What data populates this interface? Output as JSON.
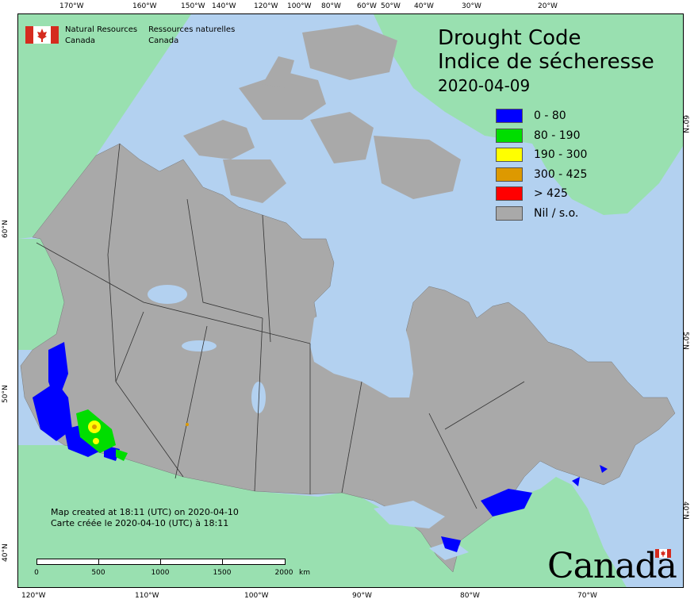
{
  "map": {
    "title_en": "Drought Code",
    "title_fr": "Indice de sécheresse",
    "date": "2020-04-09"
  },
  "legend": [
    {
      "label": "0 - 80",
      "color": "#0000ff"
    },
    {
      "label": "80 - 190",
      "color": "#00dd00"
    },
    {
      "label": "190 - 300",
      "color": "#ffff00"
    },
    {
      "label": "300 - 425",
      "color": "#dd9900"
    },
    {
      "label": "> 425",
      "color": "#ff0000"
    },
    {
      "label": "Nil / s.o.",
      "color": "#a9a9a9"
    }
  ],
  "agency": {
    "en_line1": "Natural Resources",
    "en_line2": "Canada",
    "fr_line1": "Ressources naturelles",
    "fr_line2": "Canada"
  },
  "credits": {
    "line_en": "Map created at 18:11 (UTC) on 2020-04-10",
    "line_fr": "Carte créée le 2020-04-10 (UTC) à 18:11"
  },
  "scale": {
    "ticks": [
      "0",
      "500",
      "1000",
      "1500",
      "2000"
    ],
    "unit": "km"
  },
  "graticule": {
    "top": [
      "170°W",
      "160°W",
      "150°W",
      "140°W",
      "120°W",
      "100°W",
      "80°W",
      "60°W",
      "50°W",
      "40°W",
      "30°W",
      "20°W"
    ],
    "bottom": [
      "120°W",
      "110°W",
      "100°W",
      "90°W",
      "80°W",
      "70°W"
    ],
    "left": [
      "60°N",
      "50°N",
      "40°N"
    ],
    "right": [
      "60°N",
      "50°N",
      "40°N"
    ]
  },
  "wordmark": "Canada",
  "colors": {
    "ocean": "#b3d1f0",
    "land_other": "#99e0b0",
    "land_canada": "#a9a9a9",
    "water": "#b3d1f0"
  }
}
